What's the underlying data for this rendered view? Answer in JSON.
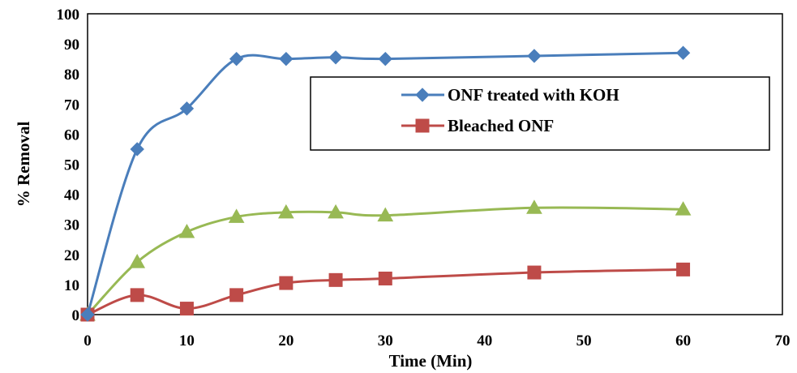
{
  "chart_data": {
    "type": "line",
    "title": "",
    "xlabel": "Time (Min)",
    "ylabel": "% Removal",
    "xlim": [
      0,
      70
    ],
    "ylim": [
      0,
      100
    ],
    "xticks": [
      0,
      10,
      20,
      30,
      40,
      50,
      60,
      70
    ],
    "yticks": [
      0,
      10,
      20,
      30,
      40,
      50,
      60,
      70,
      80,
      90,
      100
    ],
    "grid": false,
    "legend_position": "upper-right",
    "series": [
      {
        "name": "ONF treated with KOH",
        "color": "#4a7ebb",
        "marker": "diamond",
        "x": [
          0,
          5,
          10,
          15,
          20,
          25,
          30,
          45,
          60
        ],
        "y": [
          0,
          55,
          68.5,
          85,
          85,
          85.5,
          85,
          86,
          87
        ]
      },
      {
        "name": "Bleached ONF",
        "color": "#be4b48",
        "marker": "square",
        "x": [
          0,
          5,
          10,
          15,
          20,
          25,
          30,
          45,
          60
        ],
        "y": [
          0,
          6.5,
          2,
          6.5,
          10.5,
          11.5,
          12,
          14,
          15
        ]
      },
      {
        "color": "#98b954",
        "marker": "triangle",
        "x": [
          0,
          5,
          10,
          15,
          20,
          25,
          30,
          45,
          60
        ],
        "y": [
          0,
          17.5,
          27.5,
          32.5,
          34,
          34,
          33,
          35.5,
          35
        ]
      }
    ]
  }
}
